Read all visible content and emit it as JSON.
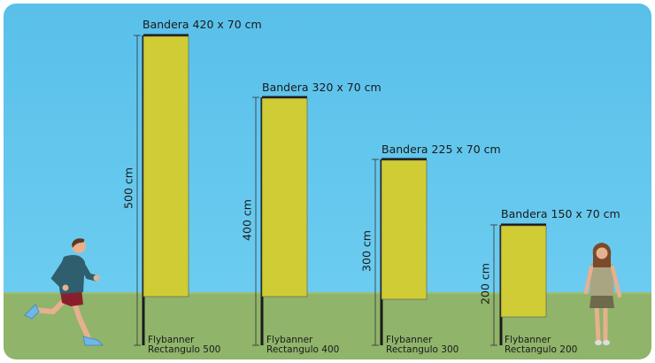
{
  "flags": [
    {
      "title": "Bandera 420 x 70 cm",
      "height_label": "500 cm",
      "caption_line1": "Flybanner",
      "caption_line2": "Rectangulo 500"
    },
    {
      "title": "Bandera 320 x 70 cm",
      "height_label": "400 cm",
      "caption_line1": "Flybanner",
      "caption_line2": "Rectangulo 400"
    },
    {
      "title": "Bandera 225 x 70 cm",
      "height_label": "300 cm",
      "caption_line1": "Flybanner",
      "caption_line2": "Rectangulo 300"
    },
    {
      "title": "Bandera 150 x 70 cm",
      "height_label": "200 cm",
      "caption_line1": "Flybanner",
      "caption_line2": "Rectangulo 200"
    }
  ],
  "colors": {
    "sky": "#5fc4ec",
    "grass": "#8fb46a",
    "flag": "#cfcc35",
    "pole": "#1b1b1b"
  }
}
